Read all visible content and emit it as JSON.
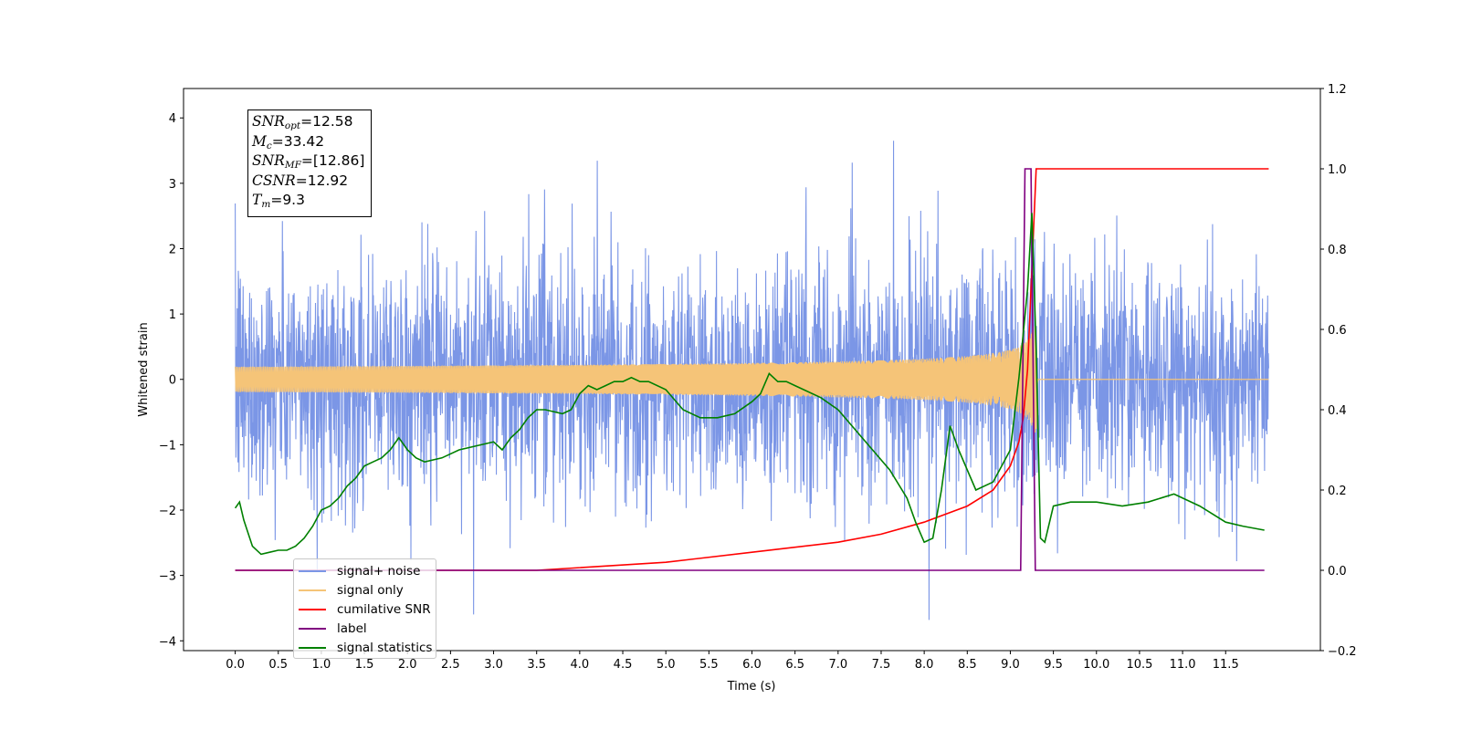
{
  "chart_data": {
    "type": "line",
    "title": "",
    "xlabel": "Time (s)",
    "ylabel": "Whitened strain",
    "xlim": [
      -0.6,
      12.6
    ],
    "ylim": [
      -4.15,
      4.45
    ],
    "y2lim": [
      -0.2,
      1.2
    ],
    "x_ticks": [
      "0.0",
      "0.5",
      "1.0",
      "1.5",
      "2.0",
      "2.5",
      "3.0",
      "3.5",
      "4.0",
      "4.5",
      "5.0",
      "5.5",
      "6.0",
      "6.5",
      "7.0",
      "7.5",
      "8.0",
      "8.5",
      "9.0",
      "9.5",
      "10.0",
      "10.5",
      "11.0",
      "11.5"
    ],
    "y_ticks": [
      "−4",
      "−3",
      "−2",
      "−1",
      "0",
      "1",
      "2",
      "3",
      "4"
    ],
    "y2_ticks": [
      "−0.2",
      "0.0",
      "0.2",
      "0.4",
      "0.6",
      "0.8",
      "1.0",
      "1.2"
    ],
    "grid": false,
    "legend_position": "lower-left",
    "annotation": {
      "snr_opt": "12.58",
      "mc": "33.42",
      "snr_mf": "[12.86]",
      "csnr": "12.92",
      "tm": "9.3"
    },
    "series": [
      {
        "name": "signal+ noise",
        "color": "#7b96e6",
        "axis": "left",
        "noise_sigma": 1.0,
        "duration": 12.0
      },
      {
        "name": "signal only",
        "color": "#f5c478",
        "axis": "left",
        "merger_time": 9.3,
        "peak_amplitude": 1.35
      },
      {
        "name": "cumilative SNR",
        "color": "#ff0000",
        "axis": "right",
        "x": [
          0.0,
          3.5,
          5.0,
          6.0,
          7.0,
          7.5,
          8.0,
          8.5,
          8.8,
          9.0,
          9.1,
          9.15,
          9.2,
          9.25,
          9.3,
          12.0
        ],
        "y": [
          0.0,
          0.0,
          0.02,
          0.045,
          0.07,
          0.09,
          0.12,
          0.16,
          0.2,
          0.26,
          0.32,
          0.38,
          0.5,
          0.75,
          1.0,
          1.0
        ]
      },
      {
        "name": "label",
        "color": "#800080",
        "axis": "right",
        "x": [
          0.0,
          9.12,
          9.17,
          9.24,
          9.29,
          11.95
        ],
        "y": [
          0.0,
          0.0,
          1.0,
          1.0,
          0.0,
          0.0
        ]
      },
      {
        "name": "signal statistics",
        "color": "#008000",
        "axis": "right",
        "x": [
          0.0,
          0.05,
          0.1,
          0.2,
          0.3,
          0.4,
          0.5,
          0.6,
          0.7,
          0.8,
          0.9,
          1.0,
          1.1,
          1.2,
          1.3,
          1.4,
          1.5,
          1.6,
          1.7,
          1.8,
          1.9,
          2.0,
          2.1,
          2.2,
          2.4,
          2.6,
          2.8,
          3.0,
          3.1,
          3.2,
          3.3,
          3.4,
          3.5,
          3.6,
          3.8,
          3.9,
          4.0,
          4.1,
          4.2,
          4.3,
          4.4,
          4.5,
          4.6,
          4.7,
          4.8,
          5.0,
          5.2,
          5.4,
          5.6,
          5.8,
          6.0,
          6.1,
          6.2,
          6.3,
          6.4,
          6.5,
          6.6,
          6.8,
          7.0,
          7.2,
          7.4,
          7.6,
          7.8,
          7.9,
          8.0,
          8.1,
          8.2,
          8.3,
          8.4,
          8.6,
          8.8,
          9.0,
          9.1,
          9.2,
          9.25,
          9.3,
          9.35,
          9.4,
          9.5,
          9.7,
          10.0,
          10.3,
          10.6,
          10.9,
          11.2,
          11.5,
          11.7,
          11.95
        ],
        "y": [
          0.155,
          0.17,
          0.125,
          0.06,
          0.04,
          0.045,
          0.05,
          0.05,
          0.06,
          0.08,
          0.11,
          0.15,
          0.16,
          0.18,
          0.21,
          0.23,
          0.26,
          0.27,
          0.28,
          0.3,
          0.33,
          0.3,
          0.28,
          0.27,
          0.28,
          0.3,
          0.31,
          0.32,
          0.3,
          0.33,
          0.35,
          0.38,
          0.4,
          0.4,
          0.39,
          0.4,
          0.44,
          0.46,
          0.45,
          0.46,
          0.47,
          0.47,
          0.48,
          0.47,
          0.47,
          0.45,
          0.4,
          0.38,
          0.38,
          0.39,
          0.42,
          0.44,
          0.49,
          0.47,
          0.47,
          0.46,
          0.45,
          0.43,
          0.4,
          0.35,
          0.3,
          0.25,
          0.18,
          0.12,
          0.07,
          0.08,
          0.2,
          0.36,
          0.3,
          0.2,
          0.22,
          0.3,
          0.48,
          0.7,
          0.89,
          0.55,
          0.08,
          0.07,
          0.16,
          0.17,
          0.17,
          0.16,
          0.17,
          0.19,
          0.16,
          0.12,
          0.11,
          0.1
        ]
      }
    ]
  }
}
